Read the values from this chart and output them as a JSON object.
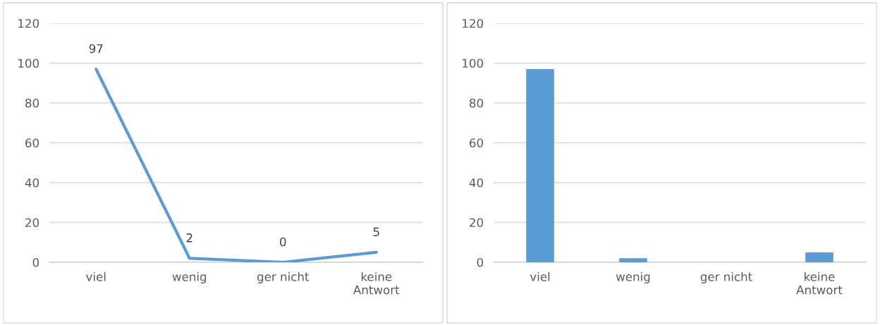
{
  "chart_data": [
    {
      "type": "line",
      "categories": [
        "viel",
        "wenig",
        "ger nicht",
        "keine\nAntwort"
      ],
      "series": [
        {
          "color": "#5b9bd5",
          "values": [
            97,
            2,
            0,
            5
          ]
        }
      ],
      "ylim": [
        0,
        120
      ],
      "yticks": [
        0,
        20,
        40,
        60,
        80,
        100,
        120
      ],
      "grid": "y",
      "data_labels": true,
      "legend": false,
      "marker": "none",
      "line_style": "solid"
    },
    {
      "type": "bar",
      "categories": [
        "viel",
        "wenig",
        "ger nicht",
        "keine\nAntwort"
      ],
      "series": [
        {
          "color": "#5b9bd5",
          "values": [
            97,
            2,
            0,
            5
          ]
        }
      ],
      "ylim": [
        0,
        120
      ],
      "yticks": [
        0,
        20,
        40,
        60,
        80,
        100,
        120
      ],
      "grid": "y",
      "legend": false
    }
  ]
}
